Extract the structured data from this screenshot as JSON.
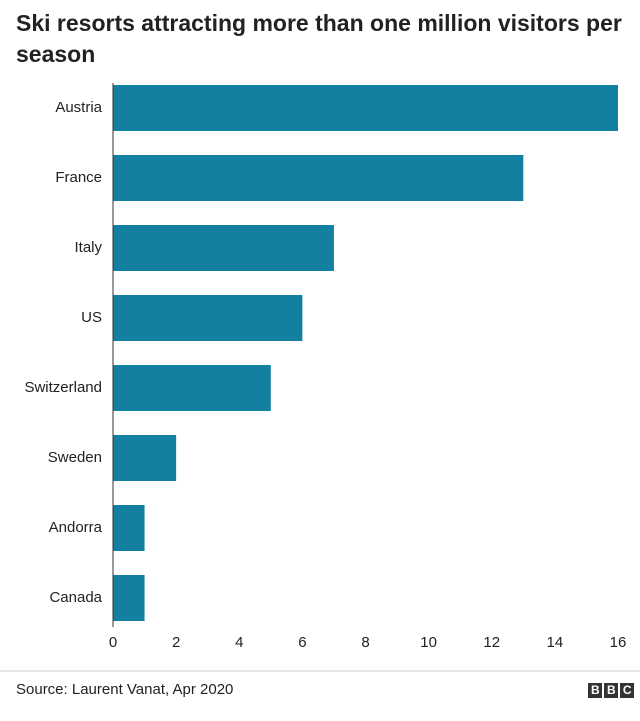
{
  "chart_data": {
    "type": "hbar",
    "title": "Ski resorts attracting more than one million visitors per season",
    "categories": [
      "Austria",
      "France",
      "Italy",
      "US",
      "Switzerland",
      "Sweden",
      "Andorra",
      "Canada"
    ],
    "values": [
      16,
      13,
      7,
      6,
      5,
      2,
      1,
      1
    ],
    "color": "#1380a1",
    "xlim": [
      0,
      16
    ],
    "xticks": [
      0,
      2,
      4,
      6,
      8,
      10,
      12,
      14,
      16
    ],
    "grid": false,
    "source": "Source: Laurent Vanat, Apr 2020",
    "logo": "BBC"
  }
}
